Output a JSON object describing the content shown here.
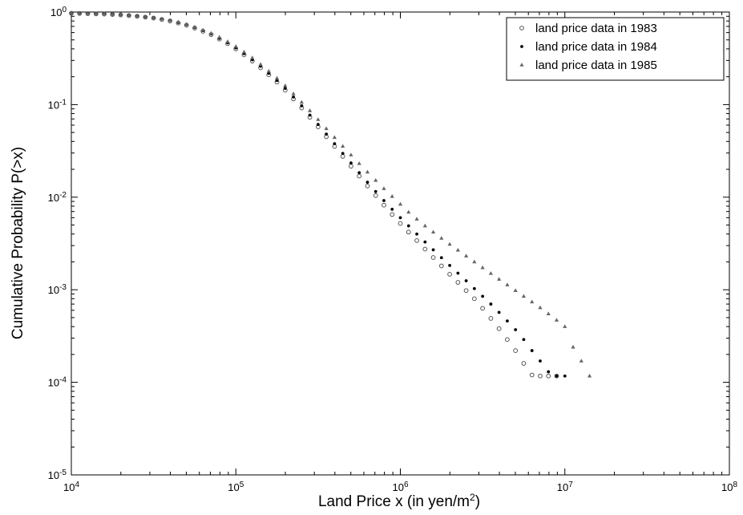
{
  "chart_data": {
    "type": "scatter",
    "xscale": "log",
    "yscale": "log",
    "xlim": [
      10000,
      100000000
    ],
    "ylim": [
      1e-05,
      1
    ],
    "xlabel": "Land Price x (in yen/m",
    "xlabel_sup": "2",
    "xlabel_end": ")",
    "ylabel": "Cumulative Probability P(>x)",
    "x_ticks": [
      {
        "value": 10000,
        "base": "10",
        "exp": "4"
      },
      {
        "value": 100000,
        "base": "10",
        "exp": "5"
      },
      {
        "value": 1000000,
        "base": "10",
        "exp": "6"
      },
      {
        "value": 10000000,
        "base": "10",
        "exp": "7"
      },
      {
        "value": 100000000,
        "base": "10",
        "exp": "8"
      }
    ],
    "y_ticks": [
      {
        "value": 1e-05,
        "base": "10",
        "exp": "-5"
      },
      {
        "value": 0.0001,
        "base": "10",
        "exp": "-4"
      },
      {
        "value": 0.001,
        "base": "10",
        "exp": "-3"
      },
      {
        "value": 0.01,
        "base": "10",
        "exp": "-2"
      },
      {
        "value": 0.1,
        "base": "10",
        "exp": "-1"
      },
      {
        "value": 1,
        "base": "10",
        "exp": "0"
      }
    ],
    "grid": false,
    "legend_position": "top-right",
    "series": [
      {
        "name": "land price data in 1983",
        "marker": "open-circle",
        "points": [
          [
            10000,
            0.97
          ],
          [
            11220,
            0.965
          ],
          [
            12590,
            0.96
          ],
          [
            14130,
            0.955
          ],
          [
            15850,
            0.95
          ],
          [
            17780,
            0.94
          ],
          [
            19950,
            0.93
          ],
          [
            22390,
            0.915
          ],
          [
            25120,
            0.9
          ],
          [
            28180,
            0.88
          ],
          [
            31620,
            0.86
          ],
          [
            35480,
            0.83
          ],
          [
            39810,
            0.8
          ],
          [
            44670,
            0.76
          ],
          [
            50120,
            0.72
          ],
          [
            56230,
            0.67
          ],
          [
            63100,
            0.62
          ],
          [
            70790,
            0.57
          ],
          [
            79430,
            0.51
          ],
          [
            89130,
            0.455
          ],
          [
            100000,
            0.4
          ],
          [
            112200,
            0.345
          ],
          [
            125900,
            0.295
          ],
          [
            141300,
            0.25
          ],
          [
            158500,
            0.21
          ],
          [
            177800,
            0.175
          ],
          [
            199500,
            0.143
          ],
          [
            223900,
            0.115
          ],
          [
            251200,
            0.092
          ],
          [
            281800,
            0.073
          ],
          [
            316200,
            0.0575
          ],
          [
            354800,
            0.045
          ],
          [
            398100,
            0.0353
          ],
          [
            446700,
            0.0276
          ],
          [
            501200,
            0.0216
          ],
          [
            562300,
            0.0169
          ],
          [
            631000,
            0.0132
          ],
          [
            707900,
            0.0104
          ],
          [
            794300,
            0.0082
          ],
          [
            891300,
            0.0065
          ],
          [
            1000000,
            0.0052
          ],
          [
            1122000,
            0.0042
          ],
          [
            1259000,
            0.0034
          ],
          [
            1413000,
            0.00275
          ],
          [
            1585000,
            0.00223
          ],
          [
            1778000,
            0.00181
          ],
          [
            1995000,
            0.00147
          ],
          [
            2239000,
            0.0012
          ],
          [
            2512000,
            0.00098
          ],
          [
            2818000,
            0.0008
          ],
          [
            3162000,
            0.00063
          ],
          [
            3548000,
            0.00049
          ],
          [
            3981000,
            0.00038
          ],
          [
            4467000,
            0.00029
          ],
          [
            5012000,
            0.00022
          ],
          [
            5623000,
            0.00016
          ],
          [
            6310000,
            0.00012
          ],
          [
            7079000,
            0.000117
          ],
          [
            7943000,
            0.000117
          ],
          [
            8913000,
            0.000117
          ]
        ]
      },
      {
        "name": "land price data in 1984",
        "marker": "filled-dot",
        "points": [
          [
            10000,
            0.975
          ],
          [
            11220,
            0.97
          ],
          [
            12590,
            0.965
          ],
          [
            14130,
            0.96
          ],
          [
            15850,
            0.955
          ],
          [
            17780,
            0.945
          ],
          [
            19950,
            0.935
          ],
          [
            22390,
            0.92
          ],
          [
            25120,
            0.905
          ],
          [
            28180,
            0.885
          ],
          [
            31620,
            0.865
          ],
          [
            35480,
            0.84
          ],
          [
            39810,
            0.81
          ],
          [
            44670,
            0.77
          ],
          [
            50120,
            0.73
          ],
          [
            56230,
            0.68
          ],
          [
            63100,
            0.63
          ],
          [
            70790,
            0.58
          ],
          [
            79430,
            0.52
          ],
          [
            89130,
            0.465
          ],
          [
            100000,
            0.41
          ],
          [
            112200,
            0.355
          ],
          [
            125900,
            0.305
          ],
          [
            141300,
            0.26
          ],
          [
            158500,
            0.218
          ],
          [
            177800,
            0.182
          ],
          [
            199500,
            0.15
          ],
          [
            223900,
            0.121
          ],
          [
            251200,
            0.097
          ],
          [
            281800,
            0.077
          ],
          [
            316200,
            0.061
          ],
          [
            354800,
            0.048
          ],
          [
            398100,
            0.0378
          ],
          [
            446700,
            0.0297
          ],
          [
            501200,
            0.0234
          ],
          [
            562300,
            0.0184
          ],
          [
            631000,
            0.0145
          ],
          [
            707900,
            0.0115
          ],
          [
            794300,
            0.0092
          ],
          [
            891300,
            0.0074
          ],
          [
            1000000,
            0.006
          ],
          [
            1122000,
            0.0049
          ],
          [
            1259000,
            0.004
          ],
          [
            1413000,
            0.00328
          ],
          [
            1585000,
            0.0027
          ],
          [
            1778000,
            0.00222
          ],
          [
            1995000,
            0.00183
          ],
          [
            2239000,
            0.00151
          ],
          [
            2512000,
            0.00125
          ],
          [
            2818000,
            0.00103
          ],
          [
            3162000,
            0.00085
          ],
          [
            3548000,
            0.0007
          ],
          [
            3981000,
            0.00057
          ],
          [
            4467000,
            0.00046
          ],
          [
            5012000,
            0.00037
          ],
          [
            5623000,
            0.00029
          ],
          [
            6310000,
            0.00022
          ],
          [
            7079000,
            0.00017
          ],
          [
            7943000,
            0.00013
          ],
          [
            8913000,
            0.000117
          ],
          [
            10000000,
            0.000117
          ]
        ]
      },
      {
        "name": "land price data in 1985",
        "marker": "triangle",
        "points": [
          [
            10000,
            0.978
          ],
          [
            11220,
            0.973
          ],
          [
            12590,
            0.968
          ],
          [
            14130,
            0.963
          ],
          [
            15850,
            0.958
          ],
          [
            17780,
            0.95
          ],
          [
            19950,
            0.94
          ],
          [
            22390,
            0.925
          ],
          [
            25120,
            0.91
          ],
          [
            28180,
            0.89
          ],
          [
            31620,
            0.87
          ],
          [
            35480,
            0.845
          ],
          [
            39810,
            0.815
          ],
          [
            44670,
            0.78
          ],
          [
            50120,
            0.74
          ],
          [
            56230,
            0.69
          ],
          [
            63100,
            0.64
          ],
          [
            70790,
            0.59
          ],
          [
            79430,
            0.535
          ],
          [
            89130,
            0.48
          ],
          [
            100000,
            0.425
          ],
          [
            112200,
            0.37
          ],
          [
            125900,
            0.32
          ],
          [
            141300,
            0.272
          ],
          [
            158500,
            0.23
          ],
          [
            177800,
            0.193
          ],
          [
            199500,
            0.16
          ],
          [
            223900,
            0.131
          ],
          [
            251200,
            0.106
          ],
          [
            281800,
            0.086
          ],
          [
            316200,
            0.069
          ],
          [
            354800,
            0.055
          ],
          [
            398100,
            0.0442
          ],
          [
            446700,
            0.0355
          ],
          [
            501200,
            0.0286
          ],
          [
            562300,
            0.0231
          ],
          [
            631000,
            0.0187
          ],
          [
            707900,
            0.0152
          ],
          [
            794300,
            0.0124
          ],
          [
            891300,
            0.0102
          ],
          [
            1000000,
            0.0084
          ],
          [
            1122000,
            0.0069
          ],
          [
            1259000,
            0.0058
          ],
          [
            1413000,
            0.0049
          ],
          [
            1585000,
            0.0042
          ],
          [
            1778000,
            0.0036
          ],
          [
            1995000,
            0.0031
          ],
          [
            2239000,
            0.00268
          ],
          [
            2512000,
            0.00232
          ],
          [
            2818000,
            0.002
          ],
          [
            3162000,
            0.00173
          ],
          [
            3548000,
            0.0015
          ],
          [
            3981000,
            0.0013
          ],
          [
            4467000,
            0.00113
          ],
          [
            5012000,
            0.00098
          ],
          [
            5623000,
            0.00085
          ],
          [
            6310000,
            0.00074
          ],
          [
            7079000,
            0.00064
          ],
          [
            7943000,
            0.00055
          ],
          [
            8913000,
            0.00047
          ],
          [
            10000000,
            0.0004
          ],
          [
            11220000,
            0.00024
          ],
          [
            12590000,
            0.00017
          ],
          [
            14130000,
            0.000117
          ]
        ]
      }
    ]
  }
}
